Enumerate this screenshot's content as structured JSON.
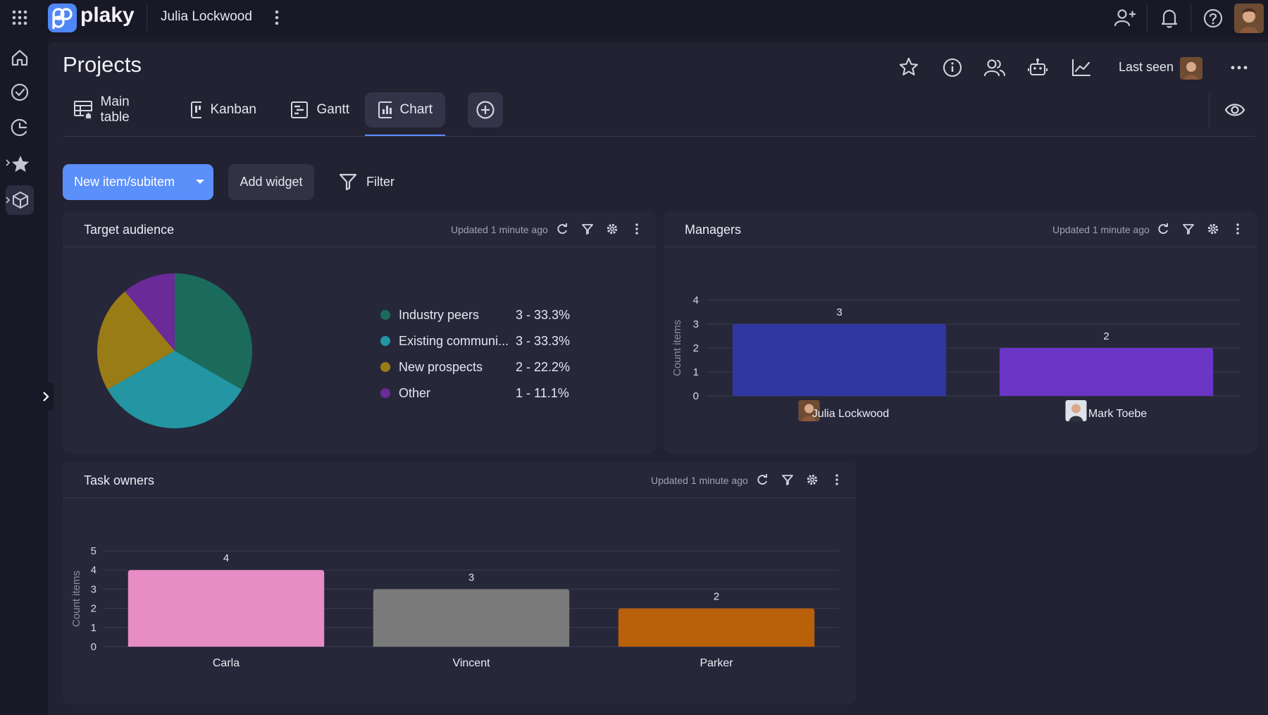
{
  "app": {
    "name": "plaky",
    "workspace": "Julia Lockwood"
  },
  "page": {
    "title": "Projects",
    "last_seen_label": "Last seen"
  },
  "tabs": [
    {
      "label": "Main table",
      "icon": "table-icon",
      "active": false
    },
    {
      "label": "Kanban",
      "icon": "kanban-icon",
      "active": false
    },
    {
      "label": "Gantt",
      "icon": "gantt-icon",
      "active": false
    },
    {
      "label": "Chart",
      "icon": "chart-icon",
      "active": true
    }
  ],
  "toolbar": {
    "new_item_label": "New item/subitem",
    "add_widget_label": "Add widget",
    "filter_label": "Filter"
  },
  "colors": {
    "accent": "#5b90fb",
    "background": "#1b1b29",
    "widget": "#27273a"
  },
  "widgets": {
    "target_audience": {
      "title": "Target audience",
      "updated": "Updated 1 minute ago"
    },
    "managers": {
      "title": "Managers",
      "updated": "Updated 1 minute ago"
    },
    "task_owners": {
      "title": "Task owners",
      "updated": "Updated 1 minute ago"
    }
  },
  "chart_data": [
    {
      "type": "pie",
      "categories": [
        "Industry peers",
        "Existing communi...",
        "New prospects",
        "Other"
      ],
      "values": [
        3,
        3,
        2,
        1
      ],
      "labels": [
        "3 - 33.3%",
        "3 - 33.3%",
        "2 - 22.2%",
        "1 - 11.1%"
      ],
      "colors": [
        "#1b6b5c",
        "#2395a3",
        "#9a7c16",
        "#6a2a98"
      ],
      "legend": "right"
    },
    {
      "type": "bar",
      "categories": [
        "Julia Lockwood",
        "Mark Toebe"
      ],
      "values": [
        3,
        2
      ],
      "colors": [
        "#3036a2",
        "#6b35c5"
      ],
      "ylabel": "Count items",
      "ylim": [
        0,
        4
      ],
      "yticks": [
        0,
        1,
        2,
        3,
        4
      ],
      "grid": true
    },
    {
      "type": "bar",
      "categories": [
        "Carla",
        "Vincent",
        "Parker"
      ],
      "values": [
        4,
        3,
        2
      ],
      "colors": [
        "#e88cc6",
        "#7a7a7a",
        "#b8600a"
      ],
      "ylabel": "Count items",
      "ylim": [
        0,
        5
      ],
      "yticks": [
        0,
        1,
        2,
        3,
        4,
        5
      ],
      "grid": true
    }
  ]
}
